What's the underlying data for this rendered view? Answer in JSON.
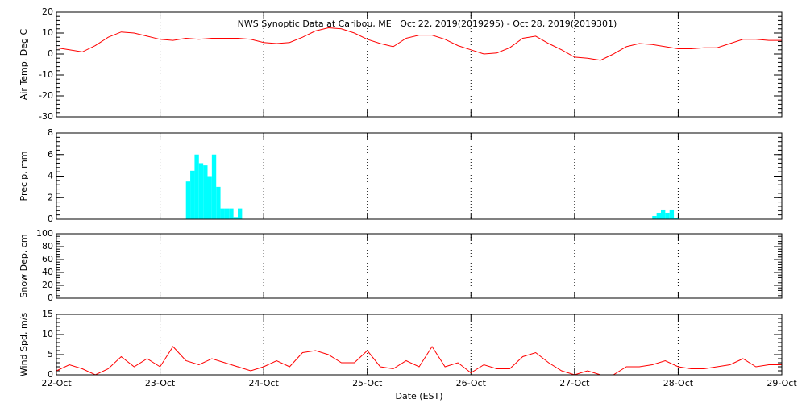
{
  "chart_data": [
    {
      "type": "line",
      "title": "NWS Synoptic Data at Caribou, ME   Oct 22, 2019(2019295) - Oct 28, 2019(2019301)",
      "ylabel": "Air Temp, Deg C",
      "xlim": [
        22,
        29
      ],
      "xticks": [
        22,
        23,
        24,
        25,
        26,
        27,
        28,
        29
      ],
      "ylim": [
        -30,
        20
      ],
      "yticks": [
        -30,
        -20,
        -10,
        0,
        10,
        20
      ],
      "series": [
        {
          "color": "#ff0000",
          "x": [
            22,
            22.125,
            22.25,
            22.375,
            22.5,
            22.625,
            22.75,
            22.875,
            23,
            23.125,
            23.25,
            23.375,
            23.5,
            23.625,
            23.75,
            23.875,
            24,
            24.125,
            24.25,
            24.375,
            24.5,
            24.625,
            24.75,
            24.875,
            25,
            25.125,
            25.25,
            25.375,
            25.5,
            25.625,
            25.75,
            25.875,
            26,
            26.125,
            26.25,
            26.375,
            26.5,
            26.625,
            26.75,
            26.875,
            27,
            27.125,
            27.25,
            27.375,
            27.5,
            27.625,
            27.75,
            27.875,
            28,
            28.125,
            28.25,
            28.375,
            28.5,
            28.625,
            28.75,
            28.875,
            29
          ],
          "values": [
            3,
            2,
            1,
            4,
            8,
            10.5,
            10,
            8.5,
            7,
            6.5,
            7.5,
            7,
            7.5,
            7.5,
            7.5,
            7,
            5.5,
            5,
            5.5,
            8,
            11,
            12.5,
            12,
            10,
            7,
            5,
            3.5,
            7.5,
            9,
            9,
            7,
            4,
            2,
            0,
            0.5,
            3,
            7.5,
            8.5,
            5,
            2,
            -1.5,
            -2,
            -3,
            0,
            3.5,
            5,
            4.5,
            3.5,
            2.5,
            2.5,
            3,
            3,
            5,
            7,
            7,
            6.5,
            6.5
          ]
        }
      ]
    },
    {
      "type": "bar",
      "ylabel": "Precip, mm",
      "xlim": [
        22,
        29
      ],
      "xticks": [
        22,
        23,
        24,
        25,
        26,
        27,
        28,
        29
      ],
      "ylim": [
        0,
        8
      ],
      "yticks": [
        0,
        2,
        4,
        6,
        8
      ],
      "series": [
        {
          "color": "#00ffff",
          "x": [
            23.25,
            23.2917,
            23.3333,
            23.375,
            23.4167,
            23.4583,
            23.5,
            23.5417,
            23.5833,
            23.625,
            23.6667,
            23.7083,
            23.75,
            27.75,
            27.7917,
            27.8333,
            27.875,
            27.9167,
            27.9583
          ],
          "values": [
            3.5,
            4.5,
            6,
            5.2,
            5,
            4,
            6,
            3,
            1,
            1,
            1,
            0.2,
            1,
            0.3,
            0.6,
            0.9,
            0.6,
            0.9,
            0.1
          ]
        }
      ]
    },
    {
      "type": "line",
      "ylabel": "Snow Dep, cm",
      "xlim": [
        22,
        29
      ],
      "xticks": [
        22,
        23,
        24,
        25,
        26,
        27,
        28,
        29
      ],
      "ylim": [
        0,
        100
      ],
      "yticks": [
        0,
        20,
        40,
        60,
        80,
        100
      ],
      "series": []
    },
    {
      "type": "line",
      "ylabel": "Wind Spd, m/s",
      "xlabel": "Date (EST)",
      "xlim": [
        22,
        29
      ],
      "xticks": [
        {
          "value": 22,
          "label": "22-Oct"
        },
        {
          "value": 23,
          "label": "23-Oct"
        },
        {
          "value": 24,
          "label": "24-Oct"
        },
        {
          "value": 25,
          "label": "25-Oct"
        },
        {
          "value": 26,
          "label": "26-Oct"
        },
        {
          "value": 27,
          "label": "27-Oct"
        },
        {
          "value": 28,
          "label": "28-Oct"
        },
        {
          "value": 29,
          "label": "29-Oct"
        }
      ],
      "ylim": [
        0,
        15
      ],
      "yticks": [
        0,
        5,
        10,
        15
      ],
      "series": [
        {
          "color": "#ff0000",
          "x": [
            22,
            22.125,
            22.25,
            22.375,
            22.5,
            22.625,
            22.75,
            22.875,
            23,
            23.125,
            23.25,
            23.375,
            23.5,
            23.625,
            23.75,
            23.875,
            24,
            24.125,
            24.25,
            24.375,
            24.5,
            24.625,
            24.75,
            24.875,
            25,
            25.125,
            25.25,
            25.375,
            25.5,
            25.625,
            25.75,
            25.875,
            26,
            26.125,
            26.25,
            26.375,
            26.5,
            26.625,
            26.75,
            26.875,
            27,
            27.125,
            27.25,
            27.375,
            27.5,
            27.625,
            27.75,
            27.875,
            28,
            28.125,
            28.25,
            28.375,
            28.5,
            28.625,
            28.75,
            28.875,
            29
          ],
          "values": [
            1,
            2.5,
            1.5,
            0,
            1.5,
            4.5,
            2,
            4,
            2,
            7,
            3.5,
            2.5,
            4,
            3,
            2,
            1,
            2,
            3.5,
            2,
            5.5,
            6,
            5,
            3,
            3,
            6,
            2,
            1.5,
            3.5,
            2,
            7,
            2,
            3,
            0.5,
            2.5,
            1.5,
            1.5,
            4.5,
            5.5,
            3,
            1,
            0,
            1,
            0,
            0,
            2,
            2,
            2.5,
            3.5,
            2,
            1.5,
            1.5,
            2,
            2.5,
            4,
            2,
            2.5,
            2.5
          ]
        }
      ]
    }
  ]
}
